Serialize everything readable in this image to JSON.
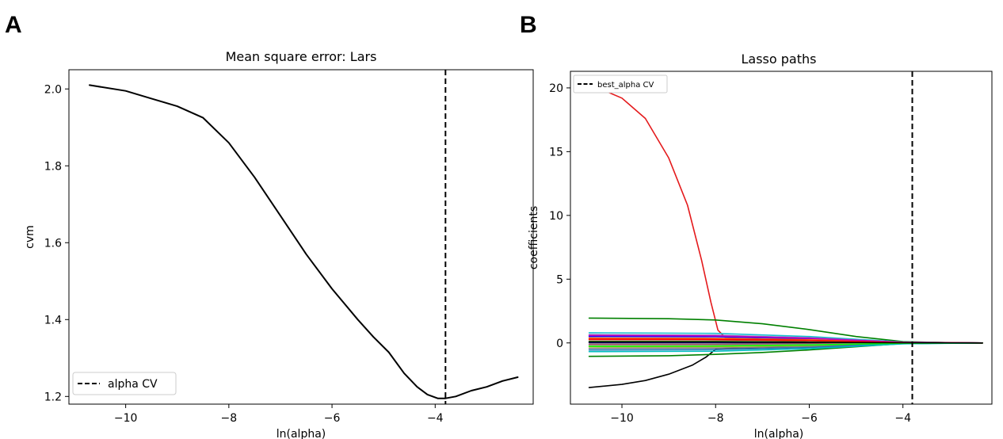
{
  "panel_a_label": "A",
  "panel_b_label": "B",
  "chart_data": [
    {
      "type": "line",
      "title": "Mean square error: Lars",
      "xlabel": "ln(alpha)",
      "ylabel": "cvm",
      "xlim": [
        -11.1,
        -2.1
      ],
      "ylim": [
        1.18,
        2.05
      ],
      "xticks": [
        -10,
        -8,
        -6,
        -4
      ],
      "yticks": [
        1.2,
        1.4,
        1.6,
        1.8,
        2.0
      ],
      "xtick_labels": [
        "−10",
        "−8",
        "−6",
        "−4"
      ],
      "ytick_labels": [
        "1.2",
        "1.4",
        "1.6",
        "1.8",
        "2.0"
      ],
      "series": [
        {
          "color": "#000000",
          "x": [
            -10.7,
            -10.0,
            -9.5,
            -9.0,
            -8.5,
            -8.0,
            -7.5,
            -7.0,
            -6.5,
            -6.0,
            -5.5,
            -5.2,
            -4.9,
            -4.6,
            -4.35,
            -4.15,
            -3.95,
            -3.8,
            -3.6,
            -3.3,
            -3.0,
            -2.7,
            -2.4
          ],
          "y": [
            2.01,
            1.995,
            1.975,
            1.955,
            1.925,
            1.86,
            1.77,
            1.67,
            1.57,
            1.48,
            1.4,
            1.355,
            1.315,
            1.26,
            1.225,
            1.205,
            1.195,
            1.195,
            1.2,
            1.215,
            1.225,
            1.24,
            1.25
          ]
        }
      ],
      "vline": {
        "x": -3.8,
        "style": "dashed",
        "color": "#000000"
      },
      "legend": {
        "position": "lower-left",
        "entries": [
          "alpha CV"
        ]
      },
      "grid": false
    },
    {
      "type": "line",
      "title": "Lasso paths",
      "xlabel": "ln(alpha)",
      "ylabel": "coefficients",
      "xlim": [
        -11.1,
        -2.1
      ],
      "ylim": [
        -4.8,
        21.3
      ],
      "xticks": [
        -10,
        -8,
        -6,
        -4
      ],
      "yticks": [
        0,
        5,
        10,
        15,
        20
      ],
      "xtick_labels": [
        "−10",
        "−8",
        "−6",
        "−4"
      ],
      "ytick_labels": [
        "0",
        "5",
        "10",
        "15",
        "20"
      ],
      "series": [
        {
          "color": "#e41a1c",
          "x": [
            -10.7,
            -10.0,
            -9.5,
            -9.0,
            -8.6,
            -8.3,
            -8.1,
            -7.95,
            -7.8,
            -7.0,
            -6.0,
            -5.0,
            -4.0,
            -3.0,
            -2.3
          ],
          "y": [
            20.3,
            19.2,
            17.6,
            14.5,
            10.8,
            6.5,
            3.2,
            1.0,
            0.45,
            0.4,
            0.3,
            0.2,
            0.08,
            0.02,
            0.0
          ]
        },
        {
          "color": "#000000",
          "x": [
            -10.7,
            -10.0,
            -9.5,
            -9.0,
            -8.5,
            -8.2,
            -8.0,
            -7.0,
            -6.0,
            -5.0,
            -4.0,
            -3.0,
            -2.3
          ],
          "y": [
            -3.5,
            -3.25,
            -2.95,
            -2.45,
            -1.75,
            -1.1,
            -0.5,
            -0.35,
            -0.25,
            -0.15,
            -0.05,
            -0.01,
            0.0
          ]
        },
        {
          "color": "#008000",
          "x": [
            -10.7,
            -9.0,
            -8.0,
            -7.0,
            -6.0,
            -5.0,
            -4.0,
            -3.0,
            -2.3
          ],
          "y": [
            1.95,
            1.9,
            1.8,
            1.5,
            1.05,
            0.5,
            0.1,
            0.02,
            0.0
          ]
        },
        {
          "color": "#008000",
          "x": [
            -10.7,
            -9.0,
            -8.0,
            -7.0,
            -6.0,
            -5.0,
            -4.0,
            -3.0,
            -2.3
          ],
          "y": [
            -1.05,
            -1.0,
            -0.9,
            -0.75,
            -0.55,
            -0.3,
            -0.05,
            -0.01,
            0.0
          ]
        },
        {
          "color": "#17becf",
          "x": [
            -10.7,
            -8.0,
            -6.0,
            -4.0,
            -2.3
          ],
          "y": [
            0.8,
            0.75,
            0.5,
            0.08,
            0.0
          ]
        },
        {
          "color": "#9467bd",
          "x": [
            -10.7,
            -8.0,
            -6.0,
            -4.0,
            -2.3
          ],
          "y": [
            0.65,
            0.6,
            0.4,
            0.06,
            0.0
          ]
        },
        {
          "color": "#0000ff",
          "x": [
            -10.7,
            -8.0,
            -6.0,
            -4.0,
            -2.3
          ],
          "y": [
            0.5,
            0.48,
            0.33,
            0.05,
            0.0
          ]
        },
        {
          "color": "#ff7f0e",
          "x": [
            -10.7,
            -8.0,
            -6.0,
            -4.0,
            -2.3
          ],
          "y": [
            0.38,
            0.36,
            0.25,
            0.04,
            0.0
          ]
        },
        {
          "color": "#d62728",
          "x": [
            -10.7,
            -8.0,
            -6.0,
            -4.0,
            -2.3
          ],
          "y": [
            0.25,
            0.24,
            0.17,
            0.03,
            0.0
          ]
        },
        {
          "color": "#2ca02c",
          "x": [
            -10.7,
            -8.0,
            -6.0,
            -4.0,
            -2.3
          ],
          "y": [
            0.12,
            0.12,
            0.08,
            0.02,
            0.0
          ]
        },
        {
          "color": "#000080",
          "x": [
            -10.7,
            -8.0,
            -6.0,
            -4.0,
            -2.3
          ],
          "y": [
            0.02,
            0.02,
            0.01,
            0.0,
            0.0
          ]
        },
        {
          "color": "#8c564b",
          "x": [
            -10.7,
            -8.0,
            -6.0,
            -4.0,
            -2.3
          ],
          "y": [
            -0.1,
            -0.1,
            -0.07,
            -0.01,
            0.0
          ]
        },
        {
          "color": "#e377c2",
          "x": [
            -10.7,
            -8.0,
            -6.0,
            -4.0,
            -2.3
          ],
          "y": [
            -0.2,
            -0.19,
            -0.13,
            -0.02,
            0.0
          ]
        },
        {
          "color": "#bcbd22",
          "x": [
            -10.7,
            -8.0,
            -6.0,
            -4.0,
            -2.3
          ],
          "y": [
            -0.3,
            -0.29,
            -0.2,
            -0.03,
            0.0
          ]
        },
        {
          "color": "#7f7f7f",
          "x": [
            -10.7,
            -8.0,
            -6.0,
            -4.0,
            -2.3
          ],
          "y": [
            -0.42,
            -0.4,
            -0.28,
            -0.04,
            0.0
          ]
        },
        {
          "color": "#1f77b4",
          "x": [
            -10.7,
            -8.0,
            -6.0,
            -4.0,
            -2.3
          ],
          "y": [
            -0.55,
            -0.52,
            -0.36,
            -0.05,
            0.0
          ]
        },
        {
          "color": "#00bfbf",
          "x": [
            -10.7,
            -8.0,
            -6.0,
            -4.0,
            -2.3
          ],
          "y": [
            -0.68,
            -0.65,
            -0.45,
            -0.07,
            0.0
          ]
        },
        {
          "color": "#bf00bf",
          "x": [
            -10.7,
            -8.0,
            -6.0,
            -4.0,
            -2.3
          ],
          "y": [
            0.58,
            0.55,
            0.37,
            0.05,
            0.0
          ]
        },
        {
          "color": "#ff0000",
          "x": [
            -10.7,
            -8.0,
            -6.0,
            -4.0,
            -2.3
          ],
          "y": [
            0.3,
            0.29,
            0.2,
            0.03,
            0.0
          ]
        },
        {
          "color": "#00ff00",
          "x": [
            -10.7,
            -8.0,
            -6.0,
            -4.0,
            -2.3
          ],
          "y": [
            -0.25,
            -0.24,
            -0.16,
            -0.02,
            0.0
          ]
        },
        {
          "color": "#000000",
          "x": [
            -10.7,
            -8.0,
            -6.0,
            -4.0,
            -2.3
          ],
          "y": [
            0.08,
            0.08,
            0.05,
            0.01,
            0.0
          ]
        }
      ],
      "vline": {
        "x": -3.8,
        "style": "dashed",
        "color": "#000000"
      },
      "legend": {
        "position": "top-left",
        "entries": [
          "best_alpha CV"
        ]
      },
      "grid": false
    }
  ]
}
